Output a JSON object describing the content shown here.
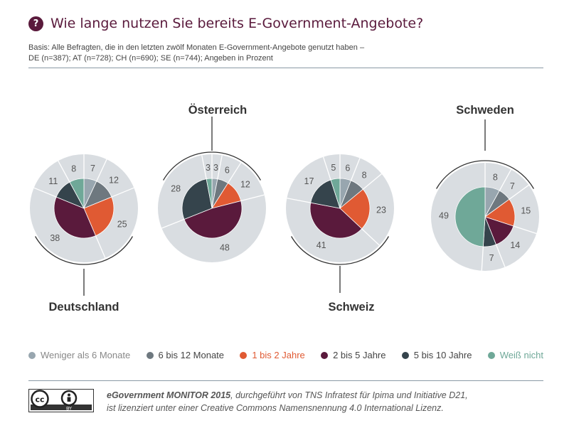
{
  "header": {
    "icon_label": "?",
    "title": "Wie lange nutzen Sie bereits E-Government-Angebote?",
    "basis_line1": "Basis: Alle Befragten, die in den letzten zwölf Monaten E-Government-Angebote genutzt haben –",
    "basis_line2": "DE (n=387); AT (n=728); CH (n=690); SE (n=744); Angeben in Prozent"
  },
  "colors": {
    "ring": "#d9dde1",
    "accent_title": "#5a1a3c",
    "label": "#555555",
    "arc": "#333333"
  },
  "chart_data": {
    "type": "pie",
    "unit": "Prozent",
    "categories": [
      "Weniger als 6 Monate",
      "6 bis 12 Monate",
      "1 bis 2 Jahre",
      "2 bis 5 Jahre",
      "5 bis 10 Jahre",
      "Weiß nicht"
    ],
    "category_colors": [
      "#98a6af",
      "#6e787f",
      "#e05a33",
      "#5a1a3c",
      "#35444c",
      "#6fa898"
    ],
    "legend_text_colors": [
      "#888888",
      "#444444",
      "#e05a33",
      "#444444",
      "#444444",
      "#6fa898"
    ],
    "series": [
      {
        "name": "Deutschland",
        "values": [
          7,
          12,
          25,
          38,
          11,
          8
        ]
      },
      {
        "name": "Österreich",
        "values": [
          3,
          6,
          12,
          48,
          28,
          3
        ]
      },
      {
        "name": "Schweiz",
        "values": [
          6,
          8,
          23,
          41,
          17,
          5
        ]
      },
      {
        "name": "Schweden",
        "values": [
          8,
          7,
          15,
          14,
          7,
          49
        ]
      }
    ]
  },
  "footer": {
    "line1_bold": "eGovernment MONITOR 2015",
    "line1_rest": ", durchgeführt von TNS Infratest für Ipima und Initiative D21,",
    "line2": "ist lizenziert unter einer Creative Commons Namensnennung 4.0 International Lizenz.",
    "cc_label": "cc",
    "by_label": "BY"
  }
}
